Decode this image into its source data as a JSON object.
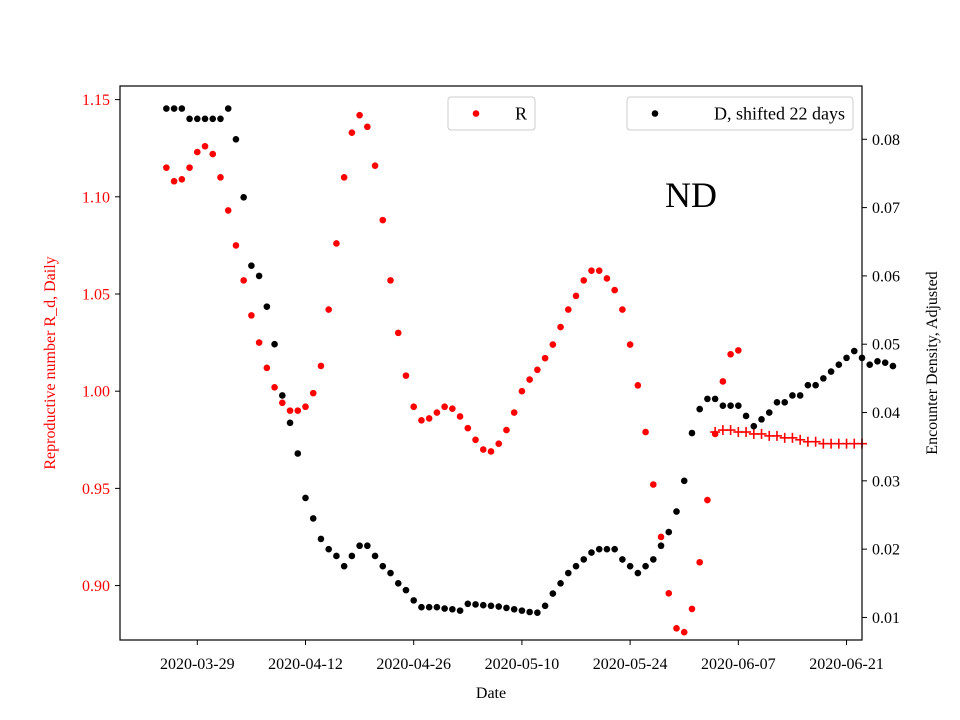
{
  "chart_data": {
    "type": "scatter",
    "annotation": "ND",
    "xlabel": "Date",
    "ylabel_left": "Reproductive number R_d, Daily",
    "ylabel_right": "Encounter Density, Adjusted",
    "x_ticks": [
      "2020-03-29",
      "2020-04-12",
      "2020-04-26",
      "2020-05-10",
      "2020-05-24",
      "2020-06-07",
      "2020-06-21"
    ],
    "y_left_ticks": [
      "0.90",
      "0.95",
      "1.00",
      "1.05",
      "1.10",
      "1.15"
    ],
    "y_right_ticks": [
      "0.01",
      "0.02",
      "0.03",
      "0.04",
      "0.05",
      "0.06",
      "0.07",
      "0.08"
    ],
    "x_range": [
      "2020-03-19",
      "2020-06-23"
    ],
    "y_left_range": [
      0.872,
      1.157
    ],
    "y_right_range": [
      0.0067,
      0.0878
    ],
    "grid": false,
    "legend_positions": [
      "top-center",
      "top-right"
    ],
    "colors": {
      "R": "#ff0000",
      "D": "#000000",
      "forecast": "#ff0000",
      "left_axis_text": "#ff0000",
      "right_axis_text": "#000000"
    },
    "series": [
      {
        "name": "R",
        "axis": "left",
        "marker": "dot",
        "color": "#ff0000",
        "points": [
          [
            "2020-03-25",
            1.115
          ],
          [
            "2020-03-26",
            1.108
          ],
          [
            "2020-03-27",
            1.109
          ],
          [
            "2020-03-28",
            1.115
          ],
          [
            "2020-03-29",
            1.123
          ],
          [
            "2020-03-30",
            1.126
          ],
          [
            "2020-03-31",
            1.122
          ],
          [
            "2020-04-01",
            1.11
          ],
          [
            "2020-04-02",
            1.093
          ],
          [
            "2020-04-03",
            1.075
          ],
          [
            "2020-04-04",
            1.057
          ],
          [
            "2020-04-05",
            1.039
          ],
          [
            "2020-04-06",
            1.025
          ],
          [
            "2020-04-07",
            1.012
          ],
          [
            "2020-04-08",
            1.002
          ],
          [
            "2020-04-09",
            0.994
          ],
          [
            "2020-04-10",
            0.99
          ],
          [
            "2020-04-11",
            0.99
          ],
          [
            "2020-04-12",
            0.992
          ],
          [
            "2020-04-13",
            0.999
          ],
          [
            "2020-04-14",
            1.013
          ],
          [
            "2020-04-15",
            1.042
          ],
          [
            "2020-04-16",
            1.076
          ],
          [
            "2020-04-17",
            1.11
          ],
          [
            "2020-04-18",
            1.133
          ],
          [
            "2020-04-19",
            1.142
          ],
          [
            "2020-04-20",
            1.136
          ],
          [
            "2020-04-21",
            1.116
          ],
          [
            "2020-04-22",
            1.088
          ],
          [
            "2020-04-23",
            1.057
          ],
          [
            "2020-04-24",
            1.03
          ],
          [
            "2020-04-25",
            1.008
          ],
          [
            "2020-04-26",
            0.992
          ],
          [
            "2020-04-27",
            0.985
          ],
          [
            "2020-04-28",
            0.986
          ],
          [
            "2020-04-29",
            0.989
          ],
          [
            "2020-04-30",
            0.992
          ],
          [
            "2020-05-01",
            0.991
          ],
          [
            "2020-05-02",
            0.987
          ],
          [
            "2020-05-03",
            0.981
          ],
          [
            "2020-05-04",
            0.975
          ],
          [
            "2020-05-05",
            0.97
          ],
          [
            "2020-05-06",
            0.969
          ],
          [
            "2020-05-07",
            0.973
          ],
          [
            "2020-05-08",
            0.98
          ],
          [
            "2020-05-09",
            0.989
          ],
          [
            "2020-05-10",
            1.0
          ],
          [
            "2020-05-11",
            1.006
          ],
          [
            "2020-05-12",
            1.011
          ],
          [
            "2020-05-13",
            1.017
          ],
          [
            "2020-05-14",
            1.024
          ],
          [
            "2020-05-15",
            1.033
          ],
          [
            "2020-05-16",
            1.042
          ],
          [
            "2020-05-17",
            1.049
          ],
          [
            "2020-05-18",
            1.057
          ],
          [
            "2020-05-19",
            1.062
          ],
          [
            "2020-05-20",
            1.062
          ],
          [
            "2020-05-21",
            1.058
          ],
          [
            "2020-05-22",
            1.052
          ],
          [
            "2020-05-23",
            1.042
          ],
          [
            "2020-05-24",
            1.024
          ],
          [
            "2020-05-25",
            1.003
          ],
          [
            "2020-05-26",
            0.979
          ],
          [
            "2020-05-27",
            0.952
          ],
          [
            "2020-05-28",
            0.925
          ],
          [
            "2020-05-29",
            0.896
          ],
          [
            "2020-05-30",
            0.878
          ],
          [
            "2020-05-31",
            0.876
          ],
          [
            "2020-06-01",
            0.888
          ],
          [
            "2020-06-02",
            0.912
          ],
          [
            "2020-06-03",
            0.944
          ],
          [
            "2020-06-04",
            0.978
          ],
          [
            "2020-06-05",
            1.005
          ],
          [
            "2020-06-06",
            1.019
          ],
          [
            "2020-06-07",
            1.021
          ]
        ]
      },
      {
        "name": "R forecast",
        "axis": "left",
        "marker": "plus",
        "color": "#ff0000",
        "points": [
          [
            "2020-06-04",
            0.979
          ],
          [
            "2020-06-05",
            0.98
          ],
          [
            "2020-06-06",
            0.98
          ],
          [
            "2020-06-07",
            0.979
          ],
          [
            "2020-06-08",
            0.979
          ],
          [
            "2020-06-09",
            0.978
          ],
          [
            "2020-06-10",
            0.978
          ],
          [
            "2020-06-11",
            0.977
          ],
          [
            "2020-06-12",
            0.977
          ],
          [
            "2020-06-13",
            0.976
          ],
          [
            "2020-06-14",
            0.976
          ],
          [
            "2020-06-15",
            0.975
          ],
          [
            "2020-06-16",
            0.974
          ],
          [
            "2020-06-17",
            0.974
          ],
          [
            "2020-06-18",
            0.973
          ],
          [
            "2020-06-19",
            0.973
          ],
          [
            "2020-06-20",
            0.973
          ],
          [
            "2020-06-21",
            0.973
          ],
          [
            "2020-06-22",
            0.973
          ],
          [
            "2020-06-23",
            0.973
          ]
        ]
      },
      {
        "name": "D, shifted 22 days",
        "axis": "right",
        "marker": "dot",
        "color": "#000000",
        "points": [
          [
            "2020-03-25",
            0.0845
          ],
          [
            "2020-03-26",
            0.0845
          ],
          [
            "2020-03-27",
            0.0845
          ],
          [
            "2020-03-28",
            0.083
          ],
          [
            "2020-03-29",
            0.083
          ],
          [
            "2020-03-30",
            0.083
          ],
          [
            "2020-03-31",
            0.083
          ],
          [
            "2020-04-01",
            0.083
          ],
          [
            "2020-04-02",
            0.0845
          ],
          [
            "2020-04-03",
            0.08
          ],
          [
            "2020-04-04",
            0.0715
          ],
          [
            "2020-04-05",
            0.0615
          ],
          [
            "2020-04-06",
            0.06
          ],
          [
            "2020-04-07",
            0.0555
          ],
          [
            "2020-04-08",
            0.05
          ],
          [
            "2020-04-09",
            0.0425
          ],
          [
            "2020-04-10",
            0.0385
          ],
          [
            "2020-04-11",
            0.034
          ],
          [
            "2020-04-12",
            0.0275
          ],
          [
            "2020-04-13",
            0.0245
          ],
          [
            "2020-04-14",
            0.0215
          ],
          [
            "2020-04-15",
            0.02
          ],
          [
            "2020-04-16",
            0.019
          ],
          [
            "2020-04-17",
            0.0175
          ],
          [
            "2020-04-18",
            0.019
          ],
          [
            "2020-04-19",
            0.0205
          ],
          [
            "2020-04-20",
            0.0205
          ],
          [
            "2020-04-21",
            0.019
          ],
          [
            "2020-04-22",
            0.0175
          ],
          [
            "2020-04-23",
            0.0165
          ],
          [
            "2020-04-24",
            0.015
          ],
          [
            "2020-04-25",
            0.014
          ],
          [
            "2020-04-26",
            0.0125
          ],
          [
            "2020-04-27",
            0.0115
          ],
          [
            "2020-04-28",
            0.0115
          ],
          [
            "2020-04-29",
            0.0115
          ],
          [
            "2020-04-30",
            0.0113
          ],
          [
            "2020-05-01",
            0.0112
          ],
          [
            "2020-05-02",
            0.011
          ],
          [
            "2020-05-03",
            0.012
          ],
          [
            "2020-05-04",
            0.0119
          ],
          [
            "2020-05-05",
            0.0118
          ],
          [
            "2020-05-06",
            0.0117
          ],
          [
            "2020-05-07",
            0.0116
          ],
          [
            "2020-05-08",
            0.0114
          ],
          [
            "2020-05-09",
            0.0112
          ],
          [
            "2020-05-10",
            0.011
          ],
          [
            "2020-05-11",
            0.0108
          ],
          [
            "2020-05-12",
            0.0107
          ],
          [
            "2020-05-13",
            0.0117
          ],
          [
            "2020-05-14",
            0.0135
          ],
          [
            "2020-05-15",
            0.015
          ],
          [
            "2020-05-16",
            0.0165
          ],
          [
            "2020-05-17",
            0.0175
          ],
          [
            "2020-05-18",
            0.0185
          ],
          [
            "2020-05-19",
            0.0195
          ],
          [
            "2020-05-20",
            0.02
          ],
          [
            "2020-05-21",
            0.02
          ],
          [
            "2020-05-22",
            0.02
          ],
          [
            "2020-05-23",
            0.0185
          ],
          [
            "2020-05-24",
            0.0175
          ],
          [
            "2020-05-25",
            0.0165
          ],
          [
            "2020-05-26",
            0.0175
          ],
          [
            "2020-05-27",
            0.0185
          ],
          [
            "2020-05-28",
            0.0205
          ],
          [
            "2020-05-29",
            0.0225
          ],
          [
            "2020-05-30",
            0.0255
          ],
          [
            "2020-05-31",
            0.03
          ],
          [
            "2020-06-01",
            0.037
          ],
          [
            "2020-06-02",
            0.0405
          ],
          [
            "2020-06-03",
            0.042
          ],
          [
            "2020-06-04",
            0.042
          ],
          [
            "2020-06-05",
            0.041
          ],
          [
            "2020-06-06",
            0.041
          ],
          [
            "2020-06-07",
            0.041
          ],
          [
            "2020-06-08",
            0.0395
          ],
          [
            "2020-06-09",
            0.038
          ],
          [
            "2020-06-10",
            0.039
          ],
          [
            "2020-06-11",
            0.04
          ],
          [
            "2020-06-12",
            0.0415
          ],
          [
            "2020-06-13",
            0.0415
          ],
          [
            "2020-06-14",
            0.0425
          ],
          [
            "2020-06-15",
            0.0425
          ],
          [
            "2020-06-16",
            0.044
          ],
          [
            "2020-06-17",
            0.044
          ],
          [
            "2020-06-18",
            0.045
          ],
          [
            "2020-06-19",
            0.046
          ],
          [
            "2020-06-20",
            0.047
          ],
          [
            "2020-06-21",
            0.048
          ],
          [
            "2020-06-22",
            0.049
          ],
          [
            "2020-06-23",
            0.048
          ],
          [
            "2020-06-24",
            0.047
          ],
          [
            "2020-06-25",
            0.0475
          ],
          [
            "2020-06-26",
            0.0473
          ],
          [
            "2020-06-27",
            0.0468
          ]
        ]
      }
    ]
  }
}
